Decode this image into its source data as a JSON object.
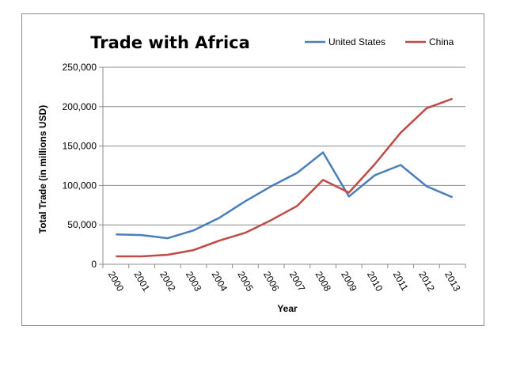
{
  "chart_data": {
    "type": "line",
    "title": "Trade with Africa",
    "xlabel": "Year",
    "ylabel": "Total Trade (in millions USD)",
    "categories": [
      "2000",
      "2001",
      "2002",
      "2003",
      "2004",
      "2005",
      "2006",
      "2007",
      "2008",
      "2009",
      "2010",
      "2011",
      "2012",
      "2013"
    ],
    "y_ticks": [
      "0",
      "50,000",
      "100,000",
      "150,000",
      "200,000",
      "250,000"
    ],
    "ylim": [
      0,
      250000
    ],
    "grid": "horizontal",
    "legend_position": "top-right",
    "series": [
      {
        "name": "United States",
        "color": "#4a7ebb",
        "values": [
          38000,
          37000,
          33000,
          43000,
          59000,
          80000,
          99000,
          116000,
          142000,
          86000,
          113000,
          126000,
          99000,
          85000
        ]
      },
      {
        "name": "China",
        "color": "#be4b48",
        "values": [
          10000,
          10000,
          12000,
          18000,
          30000,
          40000,
          56000,
          74000,
          107000,
          91000,
          127000,
          167000,
          198000,
          210000
        ]
      }
    ]
  }
}
